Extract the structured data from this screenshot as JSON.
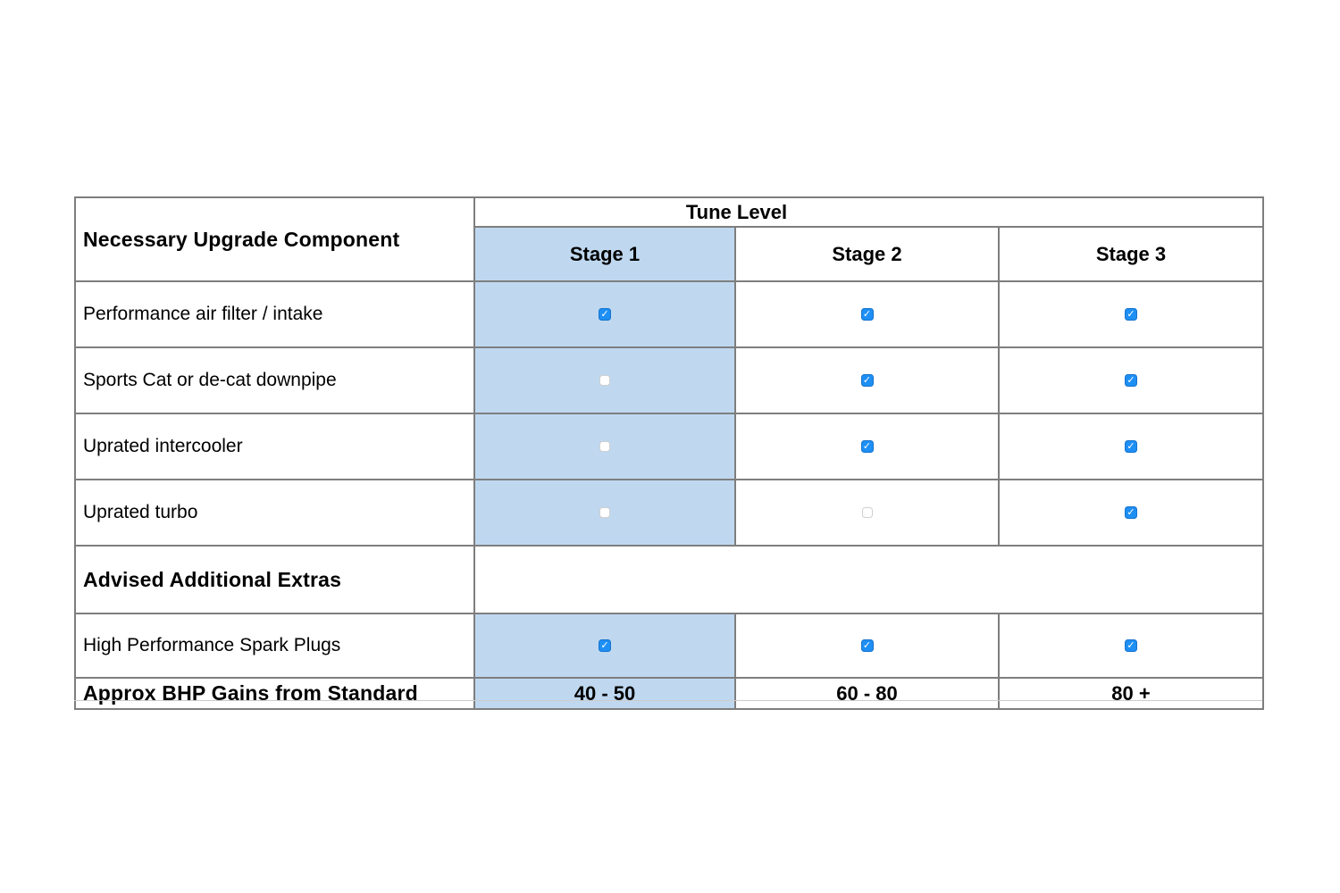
{
  "table": {
    "component_header": "Necessary Upgrade Component",
    "tune_level_header": "Tune Level",
    "stages": [
      "Stage 1",
      "Stage 2",
      "Stage 3"
    ],
    "component_rows": [
      {
        "label": "Performance air filter / intake",
        "checks": [
          "checked",
          "checked",
          "checked"
        ]
      },
      {
        "label": "Sports Cat or de-cat downpipe",
        "checks": [
          "unchecked",
          "checked",
          "checked"
        ]
      },
      {
        "label": "Uprated intercooler",
        "checks": [
          "unchecked",
          "checked",
          "checked"
        ]
      },
      {
        "label": "Uprated turbo",
        "checks": [
          "unchecked",
          "unchecked",
          "checked"
        ]
      }
    ],
    "extras_header": "Advised Additional Extras",
    "extras_rows": [
      {
        "label": "High Performance Spark Plugs",
        "checks": [
          "checked",
          "checked",
          "checked"
        ]
      }
    ],
    "bhp": {
      "label": "Approx BHP Gains from Standard",
      "values": [
        "40 - 50",
        "60 - 80",
        "80 +"
      ]
    }
  },
  "colors": {
    "stage1_column_bg": "#BFD8F0",
    "checkbox_checked_blue": "#1E8FF4",
    "grid_border": "#7E7E7E"
  }
}
